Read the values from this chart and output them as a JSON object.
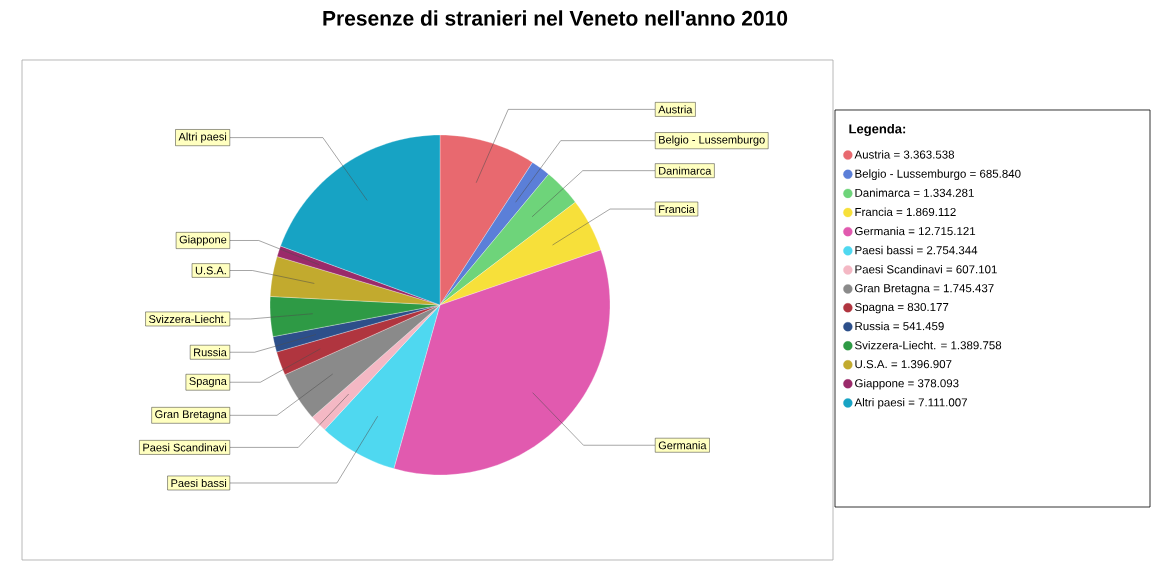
{
  "chart_data": {
    "type": "pie",
    "title": "Presenze di stranieri  nel Veneto nell'anno 2010",
    "legend_title": "Legenda:",
    "legend": "right",
    "categories": [
      "Austria",
      "Belgio - Lussemburgo",
      "Danimarca",
      "Francia",
      "Germania",
      "Paesi bassi",
      "Paesi Scandinavi",
      "Gran Bretagna",
      "Spagna",
      "Russia",
      "Svizzera-Liecht.",
      "U.S.A.",
      "Giappone",
      "Altri paesi"
    ],
    "values": [
      3363538,
      685840,
      1334281,
      1869112,
      12715121,
      2754344,
      607101,
      1745437,
      830177,
      541459,
      1389758,
      1396907,
      378093,
      7111007
    ],
    "value_labels": [
      "= 3.363.538",
      "= 685.840",
      "= 1.334.281",
      "= 1.869.112",
      "= 12.715.121",
      "= 2.754.344",
      "= 607.101",
      "= 1.745.437",
      "= 830.177",
      "= 541.459",
      "= 1.389.758",
      "= 1.396.907",
      "= 378.093",
      "= 7.111.007"
    ],
    "colors": [
      "#e8696f",
      "#5b7fd8",
      "#6ed47a",
      "#f7e03a",
      "#e15aaf",
      "#4fd8f0",
      "#f4b8c4",
      "#8a8a8a",
      "#b0353f",
      "#2d4f8a",
      "#2e9a45",
      "#c2aa2e",
      "#9a2a6a",
      "#17a3c4"
    ]
  }
}
